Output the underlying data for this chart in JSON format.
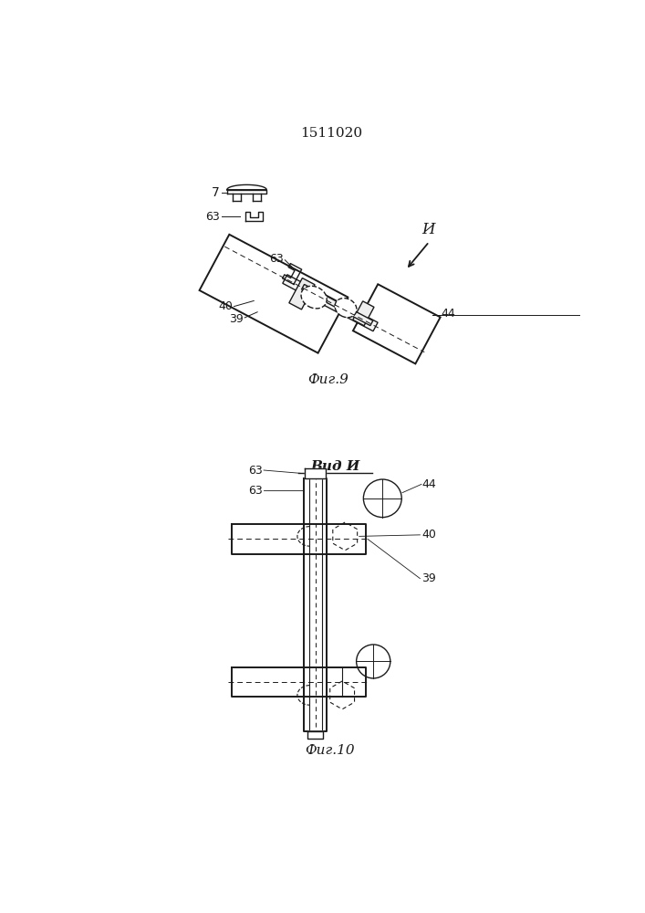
{
  "title": "1511020",
  "bg_color": "#ffffff",
  "line_color": "#1a1a1a",
  "fig9_caption": "Фиг.9",
  "fig10_caption": "Фиг.10",
  "vid_label": "Вид И"
}
